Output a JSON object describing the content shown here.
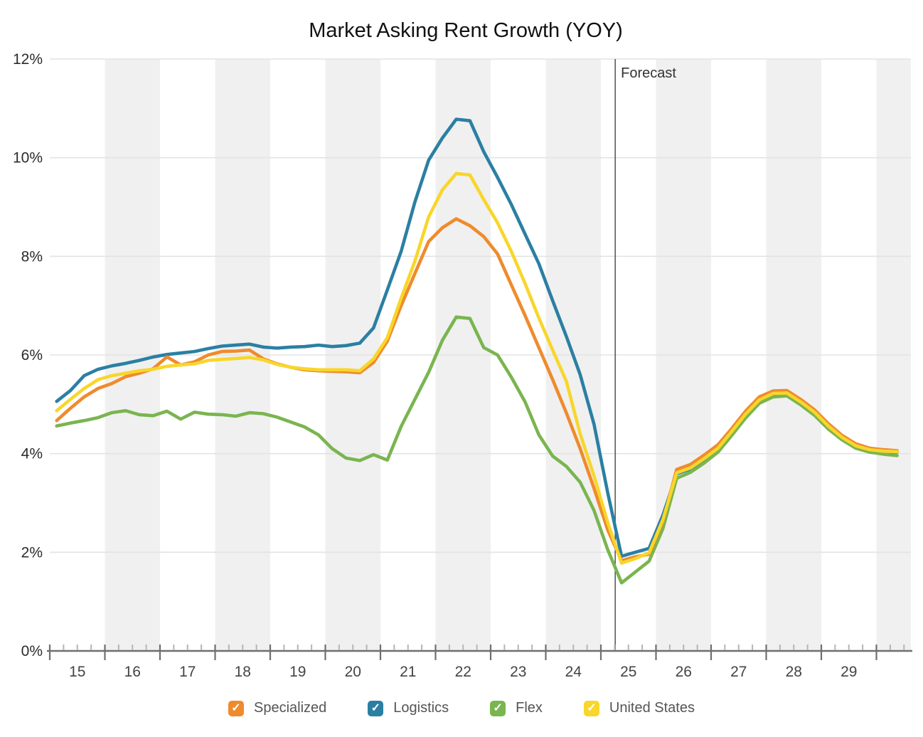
{
  "chart_data": {
    "type": "line",
    "title": "Market Asking Rent Growth (YOY)",
    "forecast_label": "Forecast",
    "forecast_x": 25.26,
    "x_start": 15.125,
    "x_step": 0.25,
    "x_axis": {
      "range": [
        15,
        30.625
      ],
      "label_years": [
        15,
        16,
        17,
        18,
        19,
        20,
        21,
        22,
        23,
        24,
        25,
        26,
        27,
        28,
        29
      ],
      "minor_tick_step": 0.25
    },
    "y_axis": {
      "range": [
        0,
        12
      ],
      "ticks": [
        0,
        2,
        4,
        6,
        8,
        10,
        12
      ],
      "unit": "%"
    },
    "shaded_years": [
      16,
      18,
      20,
      22,
      24,
      26,
      28,
      30
    ],
    "grid": true,
    "legend_position": "bottom",
    "draw_order": [
      1,
      2,
      0,
      3
    ],
    "colors": {
      "band": "#f0f0f0",
      "gridline": "#e3e3e3",
      "axis": "#6f6f6f",
      "minor_tick": "#b5b5b5",
      "forecast_line": "#444444"
    },
    "series": [
      {
        "name": "Specialized",
        "color": "#ef8b2c",
        "values": [
          4.67,
          4.92,
          5.15,
          5.32,
          5.42,
          5.56,
          5.63,
          5.72,
          5.96,
          5.8,
          5.86,
          6.0,
          6.07,
          6.08,
          6.1,
          5.92,
          5.82,
          5.75,
          5.7,
          5.68,
          5.67,
          5.66,
          5.64,
          5.85,
          6.28,
          7.0,
          7.65,
          8.3,
          8.58,
          8.76,
          8.62,
          8.4,
          8.05,
          7.42,
          6.8,
          6.15,
          5.5,
          4.82,
          4.1,
          3.3,
          2.45,
          1.83,
          1.91,
          1.96,
          2.63,
          3.68,
          3.78,
          3.97,
          4.18,
          4.51,
          4.86,
          5.15,
          5.27,
          5.28,
          5.1,
          4.89,
          4.61,
          4.37,
          4.2,
          4.11,
          4.08,
          4.06
        ]
      },
      {
        "name": "Logistics",
        "color": "#2b7fa3",
        "values": [
          5.06,
          5.28,
          5.58,
          5.71,
          5.78,
          5.83,
          5.89,
          5.96,
          6.01,
          6.04,
          6.07,
          6.13,
          6.18,
          6.2,
          6.22,
          6.16,
          6.14,
          6.16,
          6.17,
          6.2,
          6.17,
          6.19,
          6.24,
          6.55,
          7.32,
          8.1,
          9.1,
          9.95,
          10.4,
          10.78,
          10.75,
          10.12,
          9.6,
          9.05,
          8.45,
          7.85,
          7.1,
          6.37,
          5.6,
          4.6,
          3.2,
          1.92,
          2.0,
          2.08,
          2.75,
          3.59,
          3.69,
          3.89,
          4.1,
          4.44,
          4.79,
          5.08,
          5.21,
          5.22,
          5.04,
          4.83,
          4.55,
          4.32,
          4.15,
          4.07,
          4.04,
          4.03
        ]
      },
      {
        "name": "Flex",
        "color": "#7ab550",
        "values": [
          4.56,
          4.62,
          4.67,
          4.73,
          4.83,
          4.87,
          4.79,
          4.77,
          4.86,
          4.7,
          4.84,
          4.8,
          4.79,
          4.76,
          4.83,
          4.81,
          4.74,
          4.64,
          4.54,
          4.38,
          4.1,
          3.91,
          3.86,
          3.98,
          3.87,
          4.55,
          5.1,
          5.65,
          6.3,
          6.77,
          6.74,
          6.15,
          6.0,
          5.55,
          5.05,
          4.38,
          3.95,
          3.74,
          3.42,
          2.85,
          2.05,
          1.38,
          1.6,
          1.82,
          2.48,
          3.5,
          3.62,
          3.81,
          4.03,
          4.37,
          4.72,
          5.02,
          5.15,
          5.17,
          4.99,
          4.78,
          4.5,
          4.28,
          4.11,
          4.03,
          3.99,
          3.96
        ]
      },
      {
        "name": "United States",
        "color": "#f8d62b",
        "values": [
          4.87,
          5.1,
          5.32,
          5.5,
          5.58,
          5.63,
          5.68,
          5.71,
          5.77,
          5.8,
          5.82,
          5.89,
          5.91,
          5.93,
          5.95,
          5.9,
          5.81,
          5.75,
          5.72,
          5.7,
          5.7,
          5.7,
          5.68,
          5.92,
          6.35,
          7.15,
          7.9,
          8.8,
          9.35,
          9.68,
          9.65,
          9.15,
          8.68,
          8.1,
          7.45,
          6.75,
          6.1,
          5.46,
          4.4,
          3.55,
          2.6,
          1.78,
          1.87,
          1.99,
          2.66,
          3.61,
          3.71,
          3.9,
          4.11,
          4.45,
          4.8,
          5.09,
          5.22,
          5.23,
          5.05,
          4.84,
          4.56,
          4.33,
          4.16,
          4.08,
          4.05,
          4.04
        ]
      }
    ],
    "legend_check_glyph": "✓"
  }
}
